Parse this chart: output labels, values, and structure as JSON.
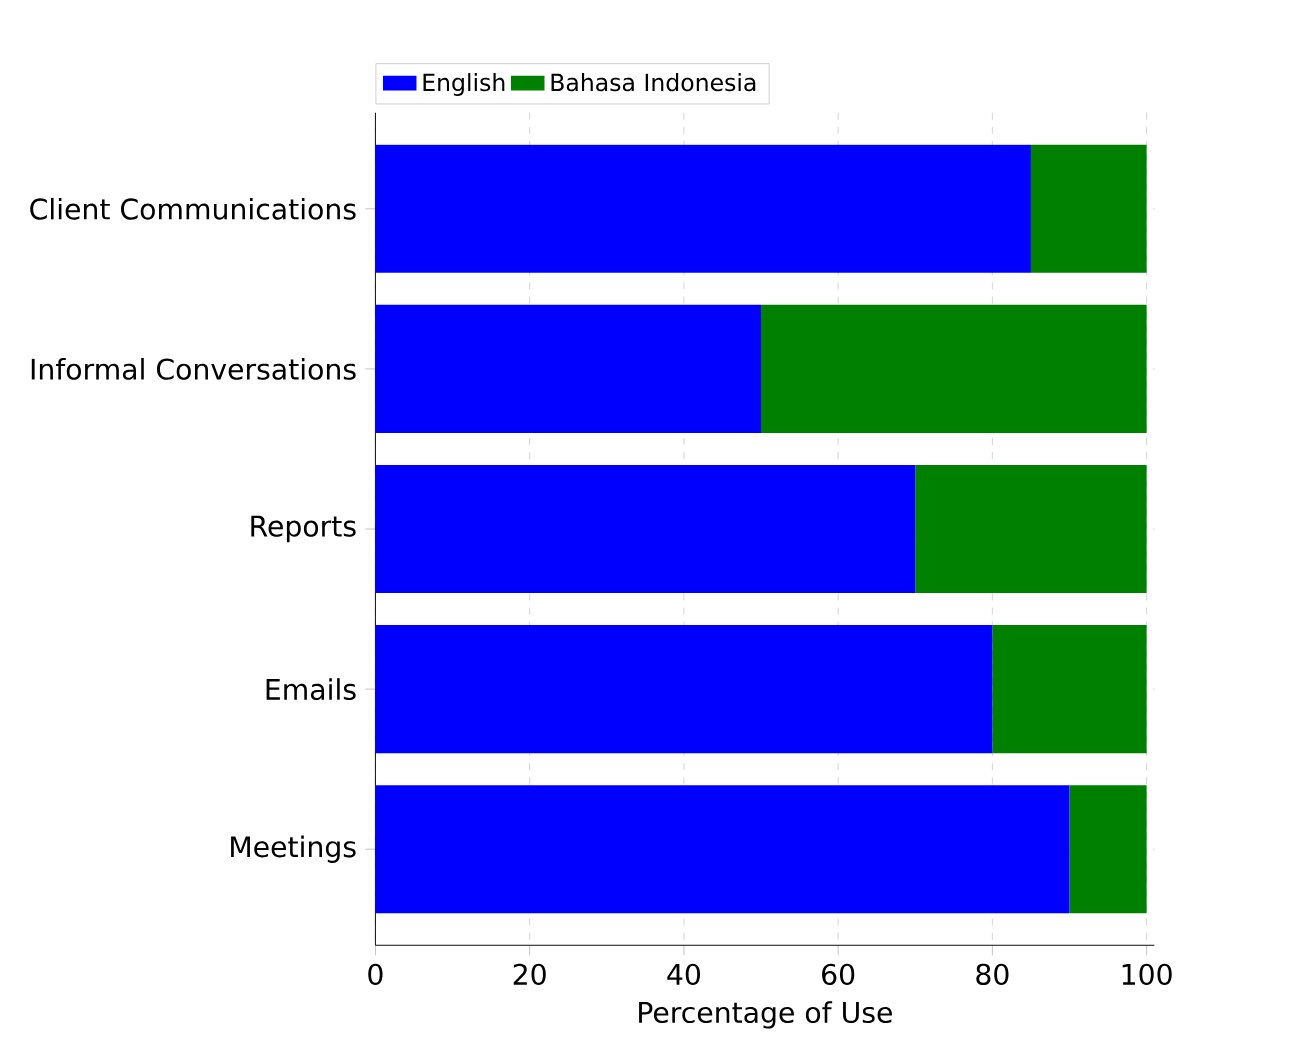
{
  "chart_data": {
    "type": "bar",
    "orientation": "horizontal",
    "stacked": true,
    "xlabel": "Percentage of Use",
    "categories": [
      "Client Communications",
      "Informal Conversations",
      "Reports",
      "Emails",
      "Meetings"
    ],
    "series": [
      {
        "name": "English",
        "color": "#0000ff",
        "values": [
          85,
          50,
          70,
          80,
          90
        ]
      },
      {
        "name": "Bahasa Indonesia",
        "color": "#008000",
        "values": [
          15,
          50,
          30,
          20,
          10
        ]
      }
    ],
    "xlim": [
      0,
      101
    ],
    "xticks": [
      0,
      20,
      40,
      60,
      80,
      100
    ],
    "grid": true,
    "legend": "top left"
  }
}
